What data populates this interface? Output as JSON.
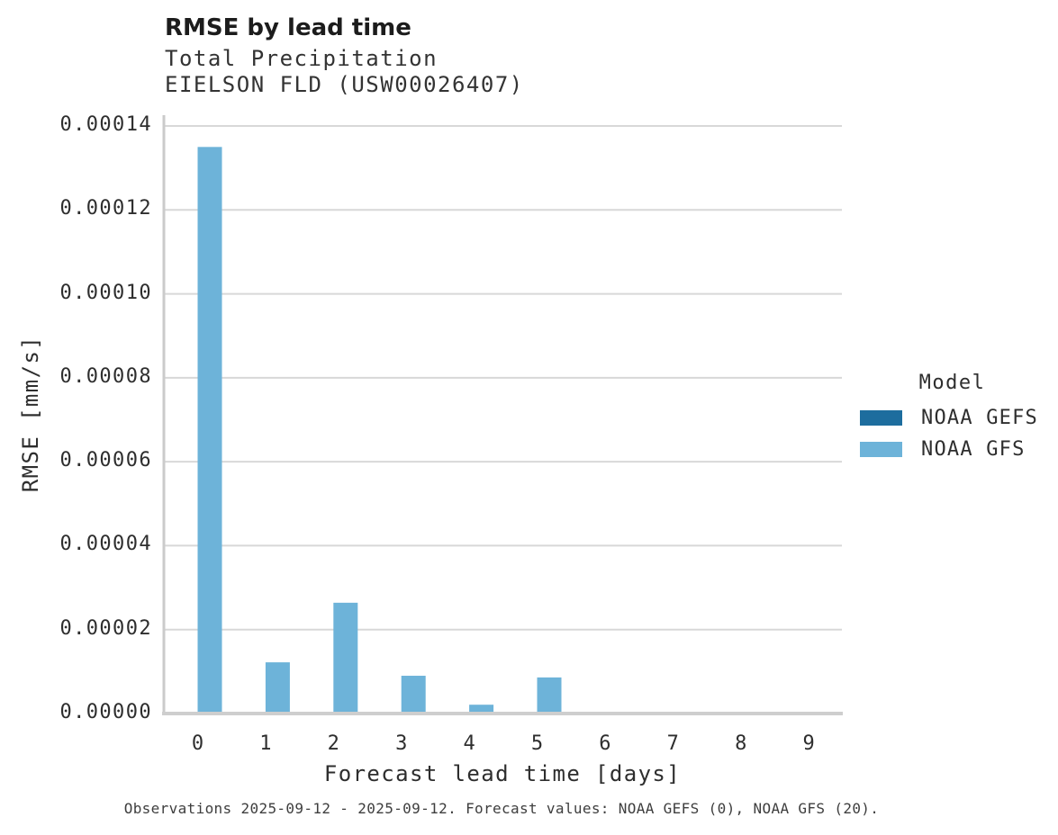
{
  "header": {
    "title": "RMSE by lead time",
    "subtitle_line1": "Total Precipitation",
    "subtitle_line2": "EIELSON FLD (USW00026407)"
  },
  "chart_data": {
    "type": "bar",
    "title": "RMSE by lead time",
    "subtitle": [
      "Total Precipitation",
      "EIELSON FLD (USW00026407)"
    ],
    "xlabel": "Forecast lead time [days]",
    "ylabel": "RMSE [mm/s]",
    "categories": [
      "0",
      "1",
      "2",
      "3",
      "4",
      "5",
      "6",
      "7",
      "8",
      "9"
    ],
    "ylim": [
      0,
      0.00014
    ],
    "y_tick_values": [
      0,
      2e-05,
      4e-05,
      6e-05,
      8e-05,
      0.0001,
      0.00012,
      0.00014
    ],
    "y_tick_labels": [
      "0.00000",
      "0.00002",
      "0.00004",
      "0.00006",
      "0.00008",
      "0.00010",
      "0.00012",
      "0.00014"
    ],
    "grid": true,
    "legend_position": "right",
    "series": [
      {
        "name": "NOAA GEFS",
        "color": "#1d6d9e",
        "values": [
          0,
          0,
          0,
          0,
          0,
          0,
          0,
          0,
          0,
          0
        ]
      },
      {
        "name": "NOAA GFS",
        "color": "#6db3d9",
        "values": [
          0.000135,
          1.22e-05,
          2.64e-05,
          9e-06,
          2.1e-06,
          8.6e-06,
          0,
          0,
          0,
          0
        ]
      }
    ]
  },
  "legend": {
    "title": "Model",
    "items": [
      {
        "label": "NOAA GEFS",
        "color": "#1d6d9e"
      },
      {
        "label": "NOAA GFS",
        "color": "#6db3d9"
      }
    ]
  },
  "colors": {
    "gridline": "#d8d8d8",
    "axis_domain": "#cbcbcb",
    "baseline": "#cecece"
  },
  "footer": {
    "text": "Observations 2025-09-12 - 2025-09-12. Forecast values: NOAA GEFS (0), NOAA GFS (20)."
  }
}
